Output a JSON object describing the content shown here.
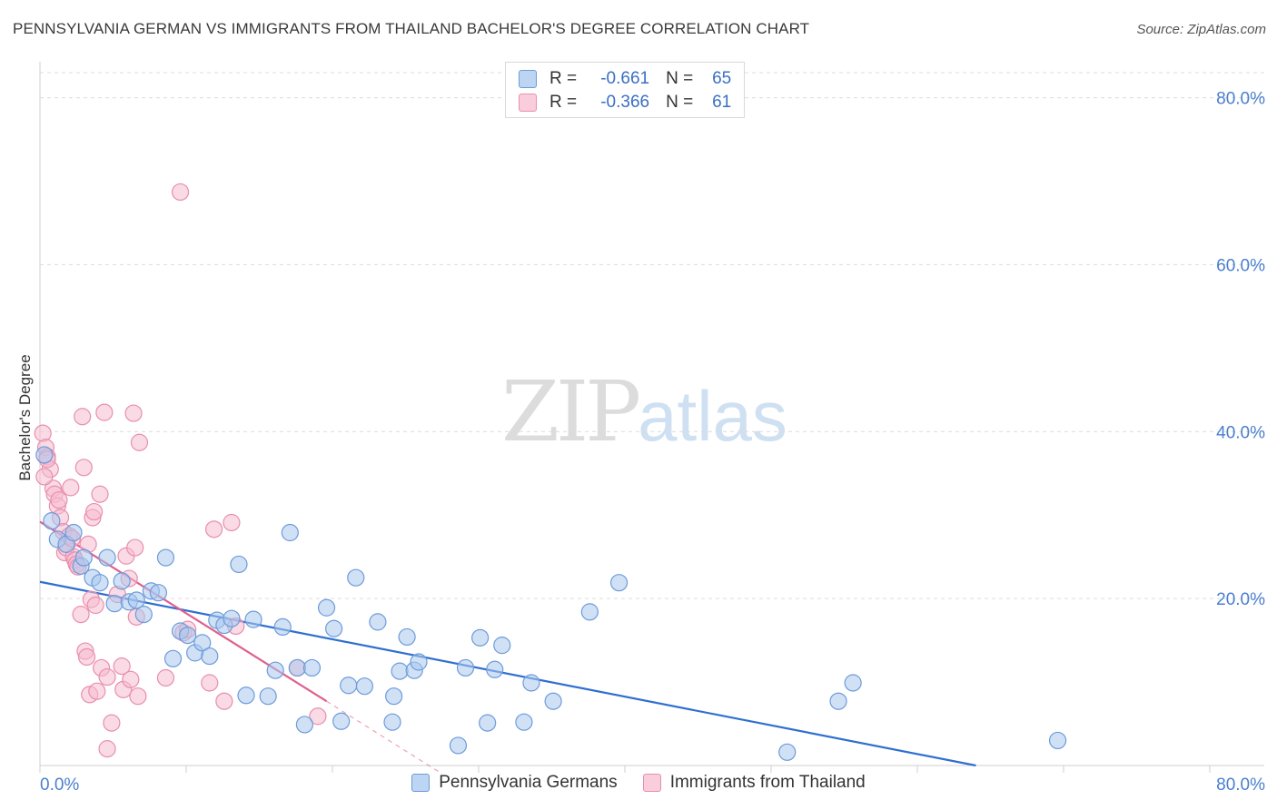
{
  "title": "PENNSYLVANIA GERMAN VS IMMIGRANTS FROM THAILAND BACHELOR'S DEGREE CORRELATION CHART",
  "source": "Source: ZipAtlas.com",
  "watermark": {
    "zip": "ZIP",
    "atlas": "atlas"
  },
  "legend_top": {
    "series1": {
      "r_label": "R =",
      "r_value": "-0.661",
      "n_label": "N =",
      "n_value": "65"
    },
    "series2": {
      "r_label": "R =",
      "r_value": "-0.366",
      "n_label": "N =",
      "n_value": "61"
    }
  },
  "colors": {
    "blue_fill": "#a9c8ef",
    "blue_stroke": "#6d9bd9",
    "blue_line": "#2f6fd0",
    "pink_fill": "#f6bcd0",
    "pink_stroke": "#e98ead",
    "pink_line": "#e0608e",
    "axis_text": "#4a7fcf",
    "grid": "#dcdcdc"
  },
  "chart_data": {
    "type": "scatter",
    "title": "PENNSYLVANIA GERMAN VS IMMIGRANTS FROM THAILAND BACHELOR'S DEGREE CORRELATION CHART",
    "xlabel": "",
    "ylabel": "Bachelor's Degree",
    "xlim": [
      0,
      80
    ],
    "ylim": [
      0,
      83
    ],
    "x_tick_labels": [
      "0.0%",
      "80.0%"
    ],
    "y_ticks": [
      20,
      40,
      60,
      80
    ],
    "y_tick_labels": [
      "20.0%",
      "40.0%",
      "60.0%",
      "80.0%"
    ],
    "grid": true,
    "legend_position": "bottom",
    "series": [
      {
        "name": "Pennsylvania Germans",
        "color": "#a9c8ef",
        "trend": {
          "x0": 0,
          "y0": 22.0,
          "x1": 64,
          "y1": 0
        },
        "points": [
          [
            0.3,
            37.2
          ],
          [
            0.8,
            29.3
          ],
          [
            1.2,
            27.1
          ],
          [
            1.8,
            26.5
          ],
          [
            2.3,
            27.9
          ],
          [
            2.8,
            23.9
          ],
          [
            3.0,
            24.9
          ],
          [
            3.6,
            22.5
          ],
          [
            4.1,
            21.9
          ],
          [
            4.6,
            24.9
          ],
          [
            5.1,
            19.4
          ],
          [
            5.6,
            22.1
          ],
          [
            6.1,
            19.6
          ],
          [
            6.6,
            19.8
          ],
          [
            7.1,
            18.1
          ],
          [
            7.6,
            20.9
          ],
          [
            8.1,
            20.7
          ],
          [
            8.6,
            24.9
          ],
          [
            9.1,
            12.8
          ],
          [
            9.6,
            16.1
          ],
          [
            10.1,
            15.6
          ],
          [
            10.6,
            13.5
          ],
          [
            11.1,
            14.7
          ],
          [
            11.6,
            13.1
          ],
          [
            12.1,
            17.4
          ],
          [
            12.6,
            16.8
          ],
          [
            13.1,
            17.6
          ],
          [
            13.6,
            24.1
          ],
          [
            14.1,
            8.4
          ],
          [
            14.6,
            17.5
          ],
          [
            15.6,
            8.3
          ],
          [
            16.1,
            11.4
          ],
          [
            16.6,
            16.6
          ],
          [
            17.1,
            27.9
          ],
          [
            17.6,
            11.7
          ],
          [
            18.1,
            4.9
          ],
          [
            18.6,
            11.7
          ],
          [
            19.6,
            18.9
          ],
          [
            20.1,
            16.4
          ],
          [
            20.6,
            5.3
          ],
          [
            21.1,
            9.6
          ],
          [
            21.6,
            22.5
          ],
          [
            22.2,
            9.5
          ],
          [
            23.1,
            17.2
          ],
          [
            24.1,
            5.2
          ],
          [
            24.2,
            8.3
          ],
          [
            24.6,
            11.3
          ],
          [
            25.1,
            15.4
          ],
          [
            25.6,
            11.4
          ],
          [
            25.9,
            12.4
          ],
          [
            28.6,
            2.4
          ],
          [
            29.1,
            11.7
          ],
          [
            30.1,
            15.3
          ],
          [
            30.6,
            5.1
          ],
          [
            31.1,
            11.5
          ],
          [
            31.6,
            14.4
          ],
          [
            33.1,
            5.2
          ],
          [
            33.6,
            9.9
          ],
          [
            35.1,
            7.7
          ],
          [
            37.6,
            18.4
          ],
          [
            39.6,
            21.9
          ],
          [
            51.1,
            1.6
          ],
          [
            54.6,
            7.7
          ],
          [
            55.6,
            9.9
          ],
          [
            69.6,
            3.0
          ]
        ]
      },
      {
        "name": "Immigrants from Thailand",
        "color": "#f6bcd0",
        "trend": {
          "x0": 0,
          "y0": 29.2,
          "x1": 19.6,
          "y1": 7.7
        },
        "trend_extension": {
          "x0": 19.6,
          "y0": 7.7,
          "x1": 27.5,
          "y1": -1.0
        },
        "points": [
          [
            0.2,
            39.8
          ],
          [
            0.4,
            38.1
          ],
          [
            0.5,
            37.0
          ],
          [
            0.7,
            35.5
          ],
          [
            0.9,
            33.2
          ],
          [
            1.0,
            32.5
          ],
          [
            1.2,
            31.1
          ],
          [
            1.4,
            29.7
          ],
          [
            1.6,
            28.0
          ],
          [
            1.7,
            25.5
          ],
          [
            1.8,
            26.1
          ],
          [
            2.0,
            27.5
          ],
          [
            2.1,
            33.3
          ],
          [
            2.2,
            27.2
          ],
          [
            2.3,
            25.0
          ],
          [
            2.4,
            24.6
          ],
          [
            2.5,
            24.1
          ],
          [
            2.6,
            23.8
          ],
          [
            2.8,
            18.1
          ],
          [
            2.9,
            41.8
          ],
          [
            3.0,
            35.7
          ],
          [
            3.1,
            13.7
          ],
          [
            3.2,
            13.0
          ],
          [
            3.3,
            26.5
          ],
          [
            3.4,
            8.5
          ],
          [
            3.5,
            19.9
          ],
          [
            3.6,
            29.7
          ],
          [
            3.7,
            30.4
          ],
          [
            3.8,
            19.2
          ],
          [
            3.9,
            8.9
          ],
          [
            4.1,
            32.5
          ],
          [
            4.2,
            11.7
          ],
          [
            4.4,
            42.3
          ],
          [
            4.6,
            10.6
          ],
          [
            4.9,
            5.1
          ],
          [
            4.6,
            2.0
          ],
          [
            5.3,
            20.5
          ],
          [
            5.6,
            11.9
          ],
          [
            5.7,
            9.1
          ],
          [
            5.9,
            25.1
          ],
          [
            6.1,
            22.4
          ],
          [
            6.2,
            10.3
          ],
          [
            6.4,
            42.2
          ],
          [
            6.5,
            26.1
          ],
          [
            6.6,
            17.8
          ],
          [
            6.7,
            8.3
          ],
          [
            6.8,
            38.7
          ],
          [
            8.6,
            10.5
          ],
          [
            9.6,
            68.7
          ],
          [
            9.8,
            15.9
          ],
          [
            10.1,
            16.3
          ],
          [
            11.6,
            9.9
          ],
          [
            11.9,
            28.3
          ],
          [
            12.6,
            7.7
          ],
          [
            13.1,
            29.1
          ],
          [
            13.4,
            16.7
          ],
          [
            17.6,
            11.7
          ],
          [
            19.0,
            5.9
          ],
          [
            0.5,
            36.7
          ],
          [
            1.3,
            31.8
          ],
          [
            0.3,
            34.6
          ]
        ]
      }
    ]
  }
}
